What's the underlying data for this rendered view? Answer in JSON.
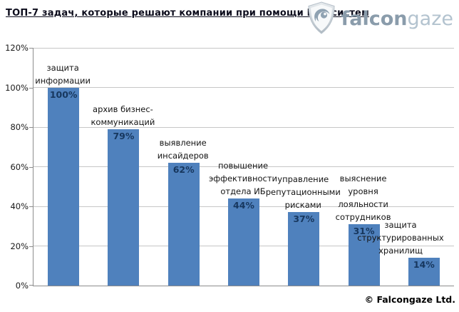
{
  "header": {
    "title": "ТОП-7 задач, которые решают компании при помощи DLP-систем",
    "logo": {
      "falcon": "falcon",
      "gaze": "gaze"
    }
  },
  "footer": {
    "copyright": "© Falcongaze Ltd."
  },
  "colors": {
    "bar": "#4f81bd",
    "value_label": "#17375e",
    "gridline": "#c6c6c6",
    "axis": "#8c8c8c",
    "logo_falcon": "#8a9cab",
    "logo_gaze": "#b3c3cf",
    "logo_shield_outer": "#c3ccd4",
    "logo_shield_swoosh": "#8fa2b2"
  },
  "chart_data": {
    "type": "bar",
    "title": "ТОП-7 задач, которые решают компании при помощи DLP-систем",
    "categories": [
      "защита информации",
      "архив бизнес-коммуникаций",
      "выявление инсайдеров",
      "повышение эффективности отдела ИБ",
      "управление репутационными рисками",
      "выяснение уровня лояльности сотрудников",
      "защита структурированных хранилищ"
    ],
    "category_lines": [
      [
        "защита",
        "информации"
      ],
      [
        "архив бизнес-",
        "коммуникаций"
      ],
      [
        "выявление",
        "инсайдеров"
      ],
      [
        "повышение",
        "эффективности",
        "отдела ИБ"
      ],
      [
        "управление",
        "репутационными",
        "рисками"
      ],
      [
        "выяснение",
        "уровня",
        "лояльности",
        "сотрудников"
      ],
      [
        "защита",
        "структурированных",
        "хранилищ"
      ]
    ],
    "values": [
      100,
      79,
      62,
      44,
      37,
      31,
      14
    ],
    "value_labels": [
      "100%",
      "79%",
      "62%",
      "44%",
      "37%",
      "31%",
      "14%"
    ],
    "xlabel": "",
    "ylabel": "",
    "ylim": [
      0,
      120
    ],
    "ytick_values": [
      0,
      20,
      40,
      60,
      80,
      100,
      120
    ],
    "ytick_labels": [
      "0%",
      "20%",
      "40%",
      "60%",
      "80%",
      "100%",
      "120%"
    ],
    "grid": true,
    "legend": false
  }
}
